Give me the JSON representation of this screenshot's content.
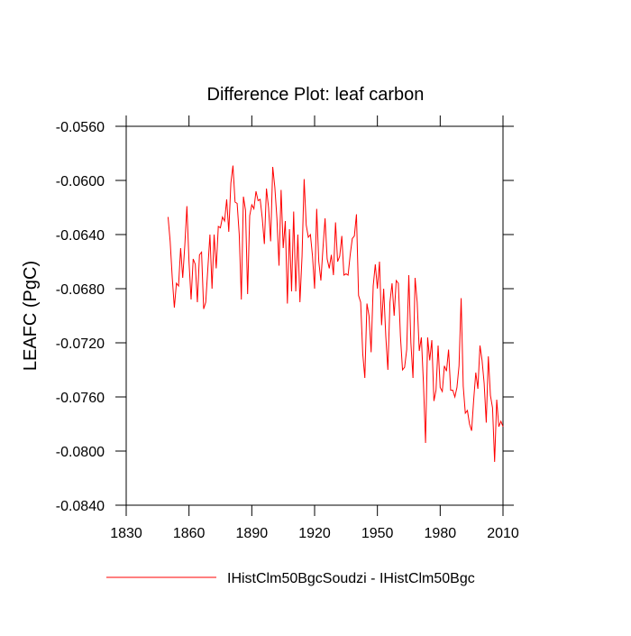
{
  "chart_data": {
    "type": "line",
    "title": "Difference Plot: leaf carbon",
    "ylabel": "LEAFC  (PgC)",
    "x": [
      1850,
      1851,
      1852,
      1853,
      1854,
      1855,
      1856,
      1857,
      1858,
      1859,
      1860,
      1861,
      1862,
      1863,
      1864,
      1865,
      1866,
      1867,
      1868,
      1869,
      1870,
      1871,
      1872,
      1873,
      1874,
      1875,
      1876,
      1877,
      1878,
      1879,
      1880,
      1881,
      1882,
      1883,
      1884,
      1885,
      1886,
      1887,
      1888,
      1889,
      1890,
      1891,
      1892,
      1893,
      1894,
      1895,
      1896,
      1897,
      1898,
      1899,
      1900,
      1901,
      1902,
      1903,
      1904,
      1905,
      1906,
      1907,
      1908,
      1909,
      1910,
      1911,
      1912,
      1913,
      1914,
      1915,
      1916,
      1917,
      1918,
      1919,
      1920,
      1921,
      1922,
      1923,
      1924,
      1925,
      1926,
      1927,
      1928,
      1929,
      1930,
      1931,
      1932,
      1933,
      1934,
      1935,
      1936,
      1937,
      1938,
      1939,
      1940,
      1941,
      1942,
      1943,
      1944,
      1945,
      1946,
      1947,
      1948,
      1949,
      1950,
      1951,
      1952,
      1953,
      1954,
      1955,
      1956,
      1957,
      1958,
      1959,
      1960,
      1961,
      1962,
      1963,
      1964,
      1965,
      1966,
      1967,
      1968,
      1969,
      1970,
      1971,
      1972,
      1973,
      1974,
      1975,
      1976,
      1977,
      1978,
      1979,
      1980,
      1981,
      1982,
      1983,
      1984,
      1985,
      1986,
      1987,
      1988,
      1989,
      1990,
      1991,
      1992,
      1993,
      1994,
      1995,
      1996,
      1997,
      1998,
      1999,
      2000,
      2001,
      2002,
      2003,
      2004,
      2005,
      2006,
      2007,
      2008,
      2009,
      2010
    ],
    "series": [
      {
        "name": "IHistClm50BgcSoudzi - IHistClm50Bgc",
        "color": "#ff0000",
        "values": [
          -0.0627,
          -0.0645,
          -0.0672,
          -0.0694,
          -0.0676,
          -0.0678,
          -0.065,
          -0.0672,
          -0.0648,
          -0.0619,
          -0.066,
          -0.0688,
          -0.0658,
          -0.0662,
          -0.069,
          -0.0655,
          -0.0653,
          -0.0695,
          -0.069,
          -0.0665,
          -0.064,
          -0.068,
          -0.064,
          -0.0665,
          -0.0634,
          -0.0635,
          -0.0627,
          -0.063,
          -0.0614,
          -0.0638,
          -0.0602,
          -0.0589,
          -0.0616,
          -0.0617,
          -0.064,
          -0.0688,
          -0.0612,
          -0.0622,
          -0.0684,
          -0.0626,
          -0.0618,
          -0.0621,
          -0.0608,
          -0.0615,
          -0.0614,
          -0.0628,
          -0.0647,
          -0.0606,
          -0.062,
          -0.0645,
          -0.059,
          -0.0605,
          -0.0628,
          -0.0663,
          -0.0607,
          -0.065,
          -0.063,
          -0.0691,
          -0.0636,
          -0.0682,
          -0.0623,
          -0.0682,
          -0.064,
          -0.069,
          -0.0656,
          -0.0599,
          -0.0633,
          -0.0642,
          -0.064,
          -0.0656,
          -0.068,
          -0.0621,
          -0.066,
          -0.0674,
          -0.065,
          -0.0628,
          -0.0658,
          -0.0665,
          -0.0655,
          -0.067,
          -0.0631,
          -0.066,
          -0.0656,
          -0.0641,
          -0.067,
          -0.0669,
          -0.067,
          -0.0655,
          -0.0643,
          -0.0641,
          -0.0625,
          -0.0685,
          -0.069,
          -0.0728,
          -0.0746,
          -0.0691,
          -0.07,
          -0.0727,
          -0.0678,
          -0.0662,
          -0.068,
          -0.066,
          -0.0707,
          -0.068,
          -0.0715,
          -0.074,
          -0.069,
          -0.0676,
          -0.07,
          -0.0674,
          -0.0676,
          -0.0715,
          -0.074,
          -0.0738,
          -0.0725,
          -0.067,
          -0.072,
          -0.0746,
          -0.0672,
          -0.069,
          -0.0726,
          -0.0716,
          -0.075,
          -0.0794,
          -0.0716,
          -0.0733,
          -0.0718,
          -0.0763,
          -0.0755,
          -0.0722,
          -0.0753,
          -0.0756,
          -0.0737,
          -0.0741,
          -0.0725,
          -0.0755,
          -0.0755,
          -0.076,
          -0.0753,
          -0.0737,
          -0.0687,
          -0.0752,
          -0.0772,
          -0.077,
          -0.078,
          -0.0785,
          -0.0762,
          -0.0742,
          -0.0754,
          -0.0722,
          -0.0733,
          -0.075,
          -0.0779,
          -0.073,
          -0.0759,
          -0.0768,
          -0.0808,
          -0.0762,
          -0.0782,
          -0.0778,
          -0.0782
        ]
      }
    ],
    "xlim": [
      1830,
      2010
    ],
    "xticks": [
      1830,
      1860,
      1890,
      1920,
      1950,
      1980,
      2010
    ],
    "ylim": [
      -0.084,
      -0.056
    ],
    "yticks": [
      {
        "value": -0.084,
        "label": "-0.0840"
      },
      {
        "value": -0.08,
        "label": "-0.0800"
      },
      {
        "value": -0.076,
        "label": "-0.0760"
      },
      {
        "value": -0.072,
        "label": "-0.0720"
      },
      {
        "value": -0.068,
        "label": "-0.0680"
      },
      {
        "value": -0.064,
        "label": "-0.0640"
      },
      {
        "value": -0.06,
        "label": "-0.0600"
      },
      {
        "value": -0.056,
        "label": "-0.0560"
      }
    ]
  }
}
